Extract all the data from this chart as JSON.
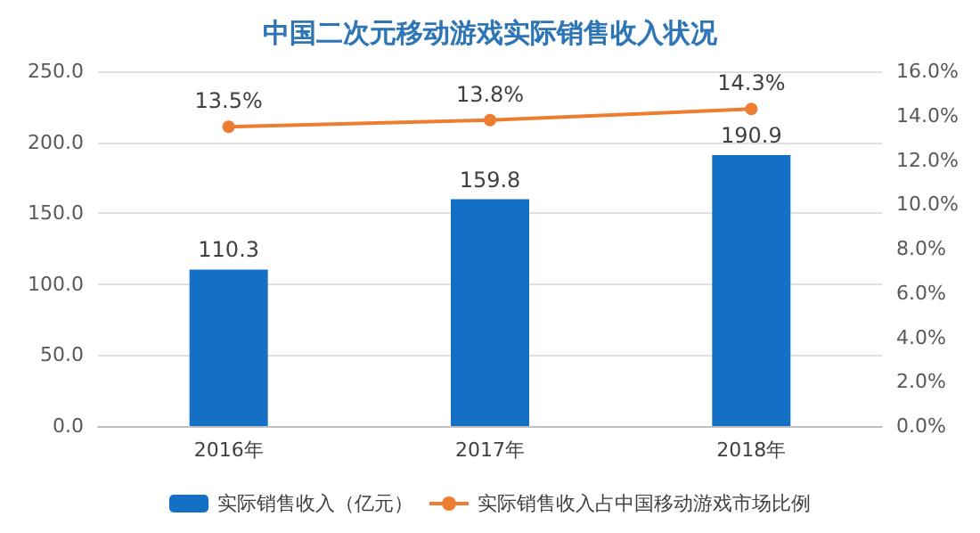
{
  "chart_data": {
    "type": "bar",
    "title": "中国二次元移动游戏实际销售收入状况",
    "categories": [
      "2016年",
      "2017年",
      "2018年"
    ],
    "series": [
      {
        "name": "实际销售收入（亿元）",
        "color": "#1470c4",
        "values": [
          110.3,
          159.8,
          190.9
        ],
        "value_labels": [
          "110.3",
          "159.8",
          "190.9"
        ]
      },
      {
        "name": "实际销售收入占中国移动游戏市场比例",
        "type": "line",
        "axis": "y2",
        "color": "#ed7d31",
        "values": [
          13.5,
          13.8,
          14.3
        ],
        "value_labels": [
          "13.5%",
          "13.8%",
          "14.3%"
        ]
      }
    ],
    "ylim": [
      0,
      250
    ],
    "yticks": [
      {
        "value": 0,
        "label": "0.0"
      },
      {
        "value": 50,
        "label": "50.0"
      },
      {
        "value": 100,
        "label": "100.0"
      },
      {
        "value": 150,
        "label": "150.0"
      },
      {
        "value": 200,
        "label": "200.0"
      },
      {
        "value": 250,
        "label": "250.0"
      }
    ],
    "y2lim": [
      0,
      16
    ],
    "y2ticks": [
      {
        "value": 0,
        "label": "0.0%"
      },
      {
        "value": 2,
        "label": "2.0%"
      },
      {
        "value": 4,
        "label": "4.0%"
      },
      {
        "value": 6,
        "label": "6.0%"
      },
      {
        "value": 8,
        "label": "8.0%"
      },
      {
        "value": 10,
        "label": "10.0%"
      },
      {
        "value": 12,
        "label": "12.0%"
      },
      {
        "value": 14,
        "label": "14.0%"
      },
      {
        "value": 16,
        "label": "16.0%"
      }
    ],
    "grid": "y",
    "legend": "bottom",
    "marker": "circle"
  }
}
